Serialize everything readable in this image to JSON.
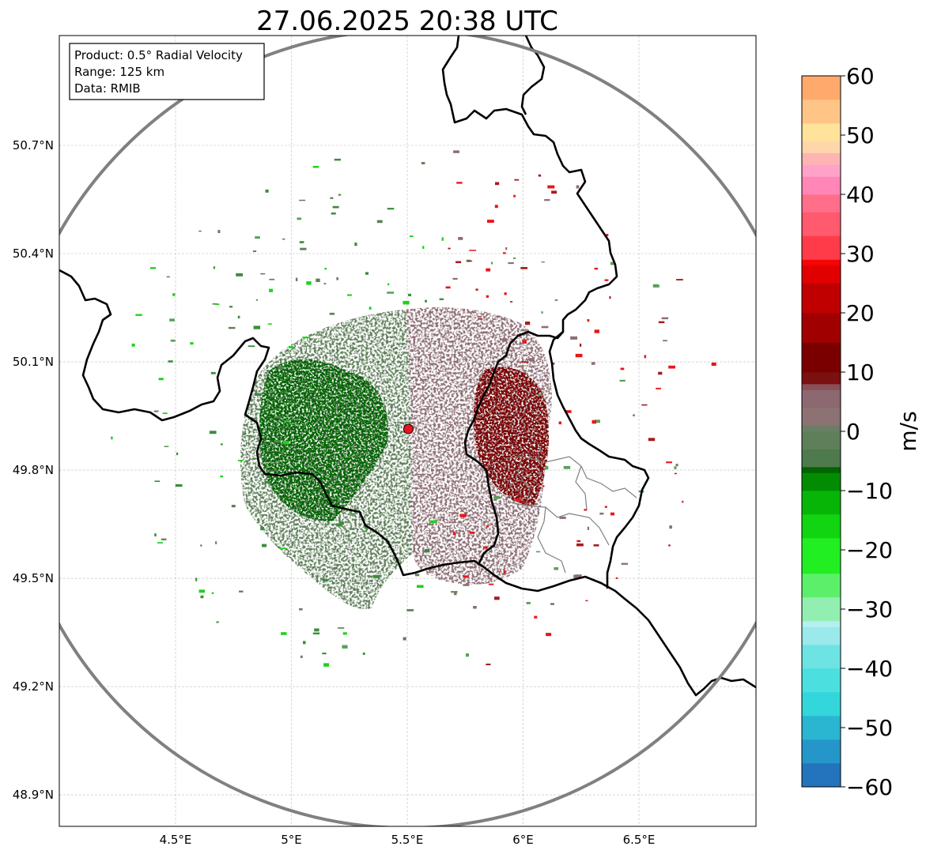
{
  "title": "27.06.2025 20:38 UTC",
  "info_box": {
    "product": "Product: 0.5° Radial Velocity",
    "range": "Range: 125 km",
    "data": "Data: RMIB"
  },
  "map": {
    "lon_range": [
      4.0,
      7.0
    ],
    "lat_range": [
      48.8,
      51.0
    ],
    "lon_ticks": [
      {
        "value": 4.5,
        "label": "4.5°E"
      },
      {
        "value": 5.0,
        "label": "5°E"
      },
      {
        "value": 5.5,
        "label": "5.5°E"
      },
      {
        "value": 6.0,
        "label": "6°E"
      },
      {
        "value": 6.5,
        "label": "6.5°E"
      }
    ],
    "lat_ticks": [
      {
        "value": 50.7,
        "label": "50.7°N"
      },
      {
        "value": 50.4,
        "label": "50.4°N"
      },
      {
        "value": 50.1,
        "label": "50.1°N"
      },
      {
        "value": 49.8,
        "label": "49.8°N"
      },
      {
        "value": 49.5,
        "label": "49.5°N"
      },
      {
        "value": 49.2,
        "label": "49.2°N"
      },
      {
        "value": 48.9,
        "label": "48.9°N"
      }
    ],
    "radar_site": {
      "lon": 5.505,
      "lat": 49.914
    },
    "range_ring_km": 125,
    "gridlines": true
  },
  "colorbar": {
    "label": "m/s",
    "min": -60,
    "max": 60,
    "ticks": [
      60,
      50,
      40,
      30,
      20,
      10,
      0,
      -10,
      -20,
      -30,
      -40,
      -50,
      -60
    ],
    "tick_labels": [
      "60",
      "50",
      "40",
      "30",
      "20",
      "10",
      "0",
      "−10",
      "−20",
      "−30",
      "−40",
      "−50",
      "−60"
    ]
  },
  "colors": {
    "ring": "#808080",
    "border": "#000000",
    "province": "#808080",
    "grid": "#bdbdbd",
    "site_fill": "#e8161c",
    "approaching_dark": "#006400",
    "approaching_mid": "#5f7f5a",
    "receding_mid": "#8c6e74",
    "receding_dark": "#7a0000"
  }
}
